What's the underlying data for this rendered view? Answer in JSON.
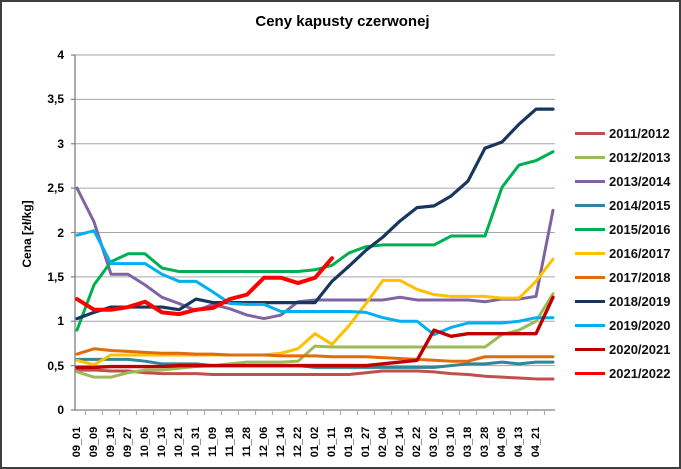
{
  "figure": {
    "title": "Ceny kapusty czerwonej",
    "y_axis": {
      "label": "Cena [zł/kg]",
      "tick_labels": [
        "4",
        "3,5",
        "3",
        "2,5",
        "2",
        "1,5",
        "1",
        "0,5",
        "0"
      ]
    },
    "decimal_separator": ","
  },
  "chart_data": {
    "type": "line",
    "title": "Ceny kapusty czerwonej",
    "xlabel": "",
    "ylabel": "Cena [zł/kg]",
    "ylim": [
      0,
      4
    ],
    "y_tick_interval": 0.5,
    "grid": true,
    "legend_position": "right",
    "x_tick_labels": [
      "09_01",
      "09_09",
      "09_19",
      "09_27",
      "10_05",
      "10_13",
      "10_21",
      "10_31",
      "11_09",
      "11_18",
      "11_28",
      "12_06",
      "12_14",
      "12_22",
      "01_02",
      "01_11",
      "01_19",
      "01_27",
      "02_04",
      "02_14",
      "02_22",
      "03_02",
      "03_10",
      "03_18",
      "03_28",
      "04_05",
      "04_13",
      "04_21"
    ],
    "note": "Values sampled at each x tick; a 29th value per series is the line end at the plot right edge just past 04_21. The 2021/2022 series ends at 01_11 (null afterwards).",
    "series": [
      {
        "name": "2011/2012",
        "color": "#C0504D",
        "values": [
          0.45,
          0.45,
          0.44,
          0.44,
          0.42,
          0.41,
          0.41,
          0.41,
          0.4,
          0.4,
          0.4,
          0.4,
          0.4,
          0.4,
          0.4,
          0.4,
          0.4,
          0.42,
          0.44,
          0.44,
          0.44,
          0.43,
          0.41,
          0.4,
          0.38,
          0.37,
          0.36,
          0.35,
          0.35
        ]
      },
      {
        "name": "2012/2013",
        "color": "#9BBB59",
        "values": [
          0.43,
          0.37,
          0.37,
          0.42,
          0.45,
          0.45,
          0.47,
          0.49,
          0.5,
          0.52,
          0.54,
          0.54,
          0.54,
          0.55,
          0.72,
          0.71,
          0.71,
          0.71,
          0.71,
          0.71,
          0.71,
          0.71,
          0.71,
          0.71,
          0.71,
          0.85,
          0.9,
          1.0,
          1.31
        ]
      },
      {
        "name": "2013/2014",
        "color": "#8064A2",
        "values": [
          2.5,
          2.12,
          1.53,
          1.53,
          1.41,
          1.27,
          1.2,
          1.12,
          1.19,
          1.14,
          1.07,
          1.03,
          1.07,
          1.22,
          1.24,
          1.24,
          1.24,
          1.24,
          1.24,
          1.27,
          1.24,
          1.24,
          1.24,
          1.24,
          1.22,
          1.25,
          1.25,
          1.28,
          2.25
        ]
      },
      {
        "name": "2014/2015",
        "color": "#31859C",
        "values": [
          0.57,
          0.57,
          0.57,
          0.57,
          0.55,
          0.52,
          0.52,
          0.52,
          0.5,
          0.5,
          0.5,
          0.5,
          0.5,
          0.5,
          0.48,
          0.48,
          0.48,
          0.48,
          0.48,
          0.48,
          0.48,
          0.48,
          0.5,
          0.52,
          0.52,
          0.54,
          0.52,
          0.54,
          0.54
        ]
      },
      {
        "name": "2015/2016",
        "color": "#00B050",
        "values": [
          0.9,
          1.41,
          1.67,
          1.76,
          1.76,
          1.6,
          1.56,
          1.56,
          1.56,
          1.56,
          1.56,
          1.56,
          1.56,
          1.56,
          1.58,
          1.63,
          1.77,
          1.84,
          1.86,
          1.86,
          1.86,
          1.86,
          1.96,
          1.96,
          1.96,
          2.51,
          2.76,
          2.81,
          2.91
        ]
      },
      {
        "name": "2016/2017",
        "color": "#FFC000",
        "values": [
          0.56,
          0.51,
          0.62,
          0.62,
          0.62,
          0.62,
          0.62,
          0.62,
          0.62,
          0.62,
          0.62,
          0.62,
          0.64,
          0.69,
          0.86,
          0.74,
          0.95,
          1.2,
          1.46,
          1.46,
          1.36,
          1.3,
          1.28,
          1.28,
          1.28,
          1.26,
          1.26,
          1.45,
          1.7
        ]
      },
      {
        "name": "2017/2018",
        "color": "#E36C0A",
        "values": [
          0.63,
          0.69,
          0.67,
          0.66,
          0.65,
          0.64,
          0.64,
          0.63,
          0.63,
          0.62,
          0.62,
          0.62,
          0.61,
          0.61,
          0.61,
          0.6,
          0.6,
          0.6,
          0.59,
          0.58,
          0.57,
          0.56,
          0.55,
          0.55,
          0.6,
          0.6,
          0.6,
          0.6,
          0.6
        ]
      },
      {
        "name": "2018/2019",
        "color": "#17375E",
        "values": [
          1.03,
          1.1,
          1.16,
          1.16,
          1.16,
          1.16,
          1.13,
          1.25,
          1.21,
          1.21,
          1.21,
          1.21,
          1.21,
          1.21,
          1.21,
          1.45,
          1.62,
          1.8,
          1.95,
          2.13,
          2.28,
          2.3,
          2.41,
          2.58,
          2.95,
          3.02,
          3.22,
          3.39,
          3.39
        ]
      },
      {
        "name": "2019/2020",
        "color": "#00B0F0",
        "values": [
          1.97,
          2.02,
          1.65,
          1.65,
          1.65,
          1.53,
          1.45,
          1.45,
          1.33,
          1.2,
          1.19,
          1.19,
          1.11,
          1.11,
          1.11,
          1.11,
          1.11,
          1.1,
          1.04,
          1.0,
          1.0,
          0.85,
          0.93,
          0.98,
          0.98,
          0.98,
          1.0,
          1.04,
          1.04
        ]
      },
      {
        "name": "2020/2021",
        "color": "#C00000",
        "values": [
          0.48,
          0.48,
          0.49,
          0.49,
          0.49,
          0.49,
          0.5,
          0.5,
          0.5,
          0.5,
          0.5,
          0.5,
          0.5,
          0.5,
          0.5,
          0.5,
          0.5,
          0.5,
          0.52,
          0.54,
          0.56,
          0.9,
          0.83,
          0.86,
          0.86,
          0.86,
          0.86,
          0.86,
          1.27
        ]
      },
      {
        "name": "2021/2022",
        "color": "#FF0000",
        "values": [
          1.25,
          1.13,
          1.13,
          1.16,
          1.22,
          1.1,
          1.08,
          1.13,
          1.15,
          1.25,
          1.3,
          1.49,
          1.49,
          1.43,
          1.49,
          1.71,
          null,
          null,
          null,
          null,
          null,
          null,
          null,
          null,
          null,
          null,
          null,
          null,
          null
        ]
      }
    ]
  }
}
